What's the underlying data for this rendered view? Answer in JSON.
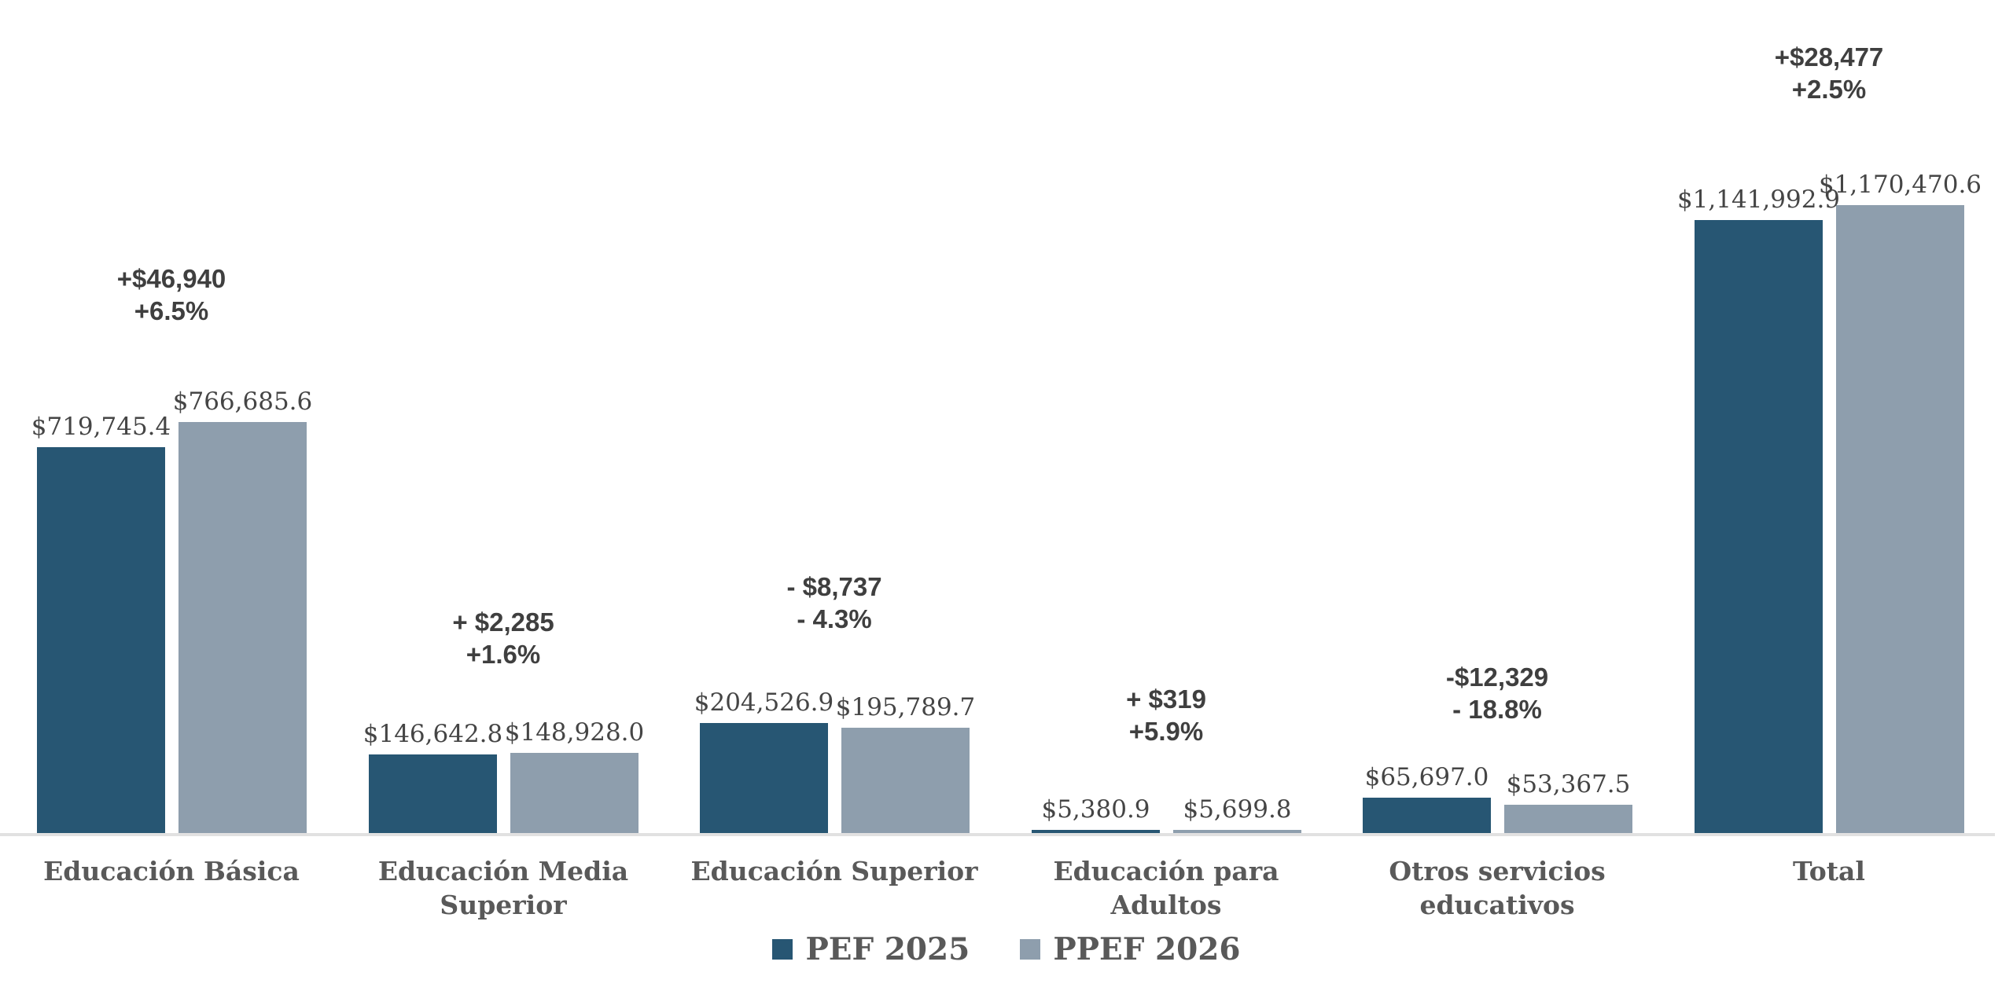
{
  "chart_data": {
    "type": "bar",
    "title": "",
    "categories": [
      "Educación Básica",
      "Educación Media Superior",
      "Educación Superior",
      "Educación para Adultos",
      "Otros servicios educativos",
      "Total"
    ],
    "series": [
      {
        "name": "PEF 2025",
        "color": "#275673",
        "values": [
          719745.4,
          146642.8,
          204526.9,
          5380.9,
          65697.0,
          1141992.9
        ]
      },
      {
        "name": "PPEF 2026",
        "color": "#8E9EAD",
        "values": [
          766685.6,
          148928.0,
          195789.7,
          5699.8,
          53367.5,
          1170470.6
        ]
      }
    ],
    "value_labels": [
      [
        "$719,745.4",
        "$766,685.6"
      ],
      [
        "$146,642.8",
        "$148,928.0"
      ],
      [
        "$204,526.9",
        "$195,789.7"
      ],
      [
        "$5,380.9",
        "$5,699.8"
      ],
      [
        "$65,697.0",
        "$53,367.5"
      ],
      [
        "$1,141,992.9",
        "$1,170,470.6"
      ]
    ],
    "change_labels": [
      [
        "+$46,940",
        "+6.5%"
      ],
      [
        "+ $2,285",
        "+1.6%"
      ],
      [
        "- $8,737",
        "- 4.3%"
      ],
      [
        "+ $319",
        "+5.9%"
      ],
      [
        "-$12,329",
        "- 18.8%"
      ],
      [
        "+$28,477",
        "+2.5%"
      ]
    ],
    "ylim": [
      0,
      1170470.6
    ],
    "grid": false,
    "legend_position": "bottom",
    "colors": {
      "axis_line": "#E1E1E1",
      "value_text": "#454545",
      "change_text": "#3F3F3F",
      "category_text": "#595959",
      "legend_text": "#595959",
      "background": "#FFFFFF"
    }
  }
}
